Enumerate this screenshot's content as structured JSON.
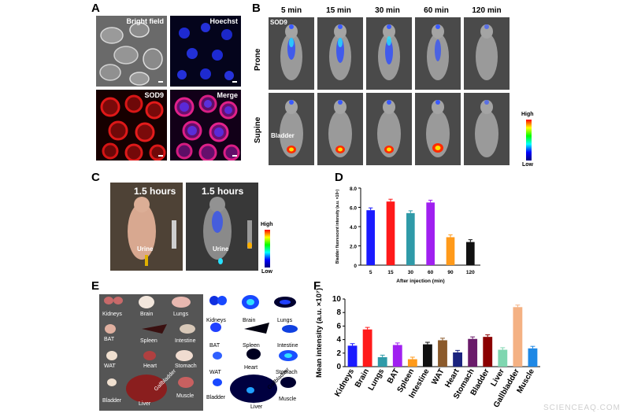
{
  "panels": {
    "A": {
      "label": "A",
      "images": [
        {
          "title": "Bright field",
          "tone": "grayscale"
        },
        {
          "title": "Hoechst",
          "tone": "blue"
        },
        {
          "title": "SOD9",
          "tone": "red"
        },
        {
          "title": "Merge",
          "tone": "magenta"
        }
      ]
    },
    "B": {
      "label": "B",
      "times": [
        "5 min",
        "15 min",
        "30 min",
        "60 min",
        "120 min"
      ],
      "rows": [
        "Prone",
        "Supine"
      ],
      "probe_label": "SOD9",
      "bladder_label": "Bladder",
      "colorbar_high": "High",
      "colorbar_low": "Low"
    },
    "C": {
      "label": "C",
      "time_label_left": "1.5 hours",
      "time_label_right": "1.5 hours",
      "urine_left": "Urine",
      "urine_right": "Urine",
      "colorbar_high": "High",
      "colorbar_low": "Low"
    },
    "D": {
      "label": "D"
    },
    "E": {
      "label": "E",
      "organs_left": [
        "Kidneys",
        "Brain",
        "Lungs",
        "BAT",
        "Spleen",
        "Intestine",
        "WAT",
        "Heart",
        "Stomach",
        "Bladder",
        "Liver",
        "Gallbladder",
        "Muscle"
      ],
      "organs_right": [
        "Kidneys",
        "Brain",
        "Lungs",
        "BAT",
        "Spleen",
        "Intestine",
        "WAT",
        "Heart",
        "Stomach",
        "Bladder",
        "Liver",
        "Gallbladder",
        "Muscle"
      ]
    },
    "F": {
      "label": "F"
    }
  },
  "watermark": "SCIENCEAQ.COM",
  "chart_data": [
    {
      "type": "bar",
      "panel": "D",
      "categories": [
        "5",
        "15",
        "30",
        "60",
        "90",
        "120"
      ],
      "values": [
        5.7,
        6.6,
        5.4,
        6.5,
        2.9,
        2.4
      ],
      "colors": [
        "#1a1aff",
        "#ff1a1a",
        "#2f9aa8",
        "#a020f0",
        "#ff9a1a",
        "#111111"
      ],
      "xlabel": "After injection (min)",
      "ylabel": "Bladder fluorescent intensity (a.u. ×10⁶)",
      "ylim": [
        0,
        8
      ],
      "yticks": [
        "0",
        "2.0",
        "4.0",
        "6.0",
        "8.0"
      ],
      "error_bars": true,
      "grid": false
    },
    {
      "type": "bar",
      "panel": "F",
      "categories": [
        "Kidneys",
        "Brain",
        "Lungs",
        "BAT",
        "Spleen",
        "Intestine",
        "WAT",
        "Heart",
        "Stomach",
        "Bladder",
        "Liver",
        "Gallbladder",
        "Muscle"
      ],
      "values": [
        3.1,
        5.5,
        1.4,
        3.2,
        1.1,
        3.3,
        3.9,
        2.1,
        4.1,
        4.4,
        2.5,
        8.8,
        2.7
      ],
      "colors": [
        "#1a1aff",
        "#ff1a1a",
        "#2f9aa8",
        "#a020f0",
        "#ff9a1a",
        "#111111",
        "#8b5a2b",
        "#1a237e",
        "#6a1b6a",
        "#8b0000",
        "#7fd6b0",
        "#f4b183",
        "#1e88e5"
      ],
      "ylabel": "Mean intensity (a.u. ×10⁷)",
      "ylim": [
        0,
        10
      ],
      "yticks": [
        "0",
        "2",
        "4",
        "6",
        "8",
        "10"
      ],
      "error_bars": true,
      "grid": false
    }
  ]
}
